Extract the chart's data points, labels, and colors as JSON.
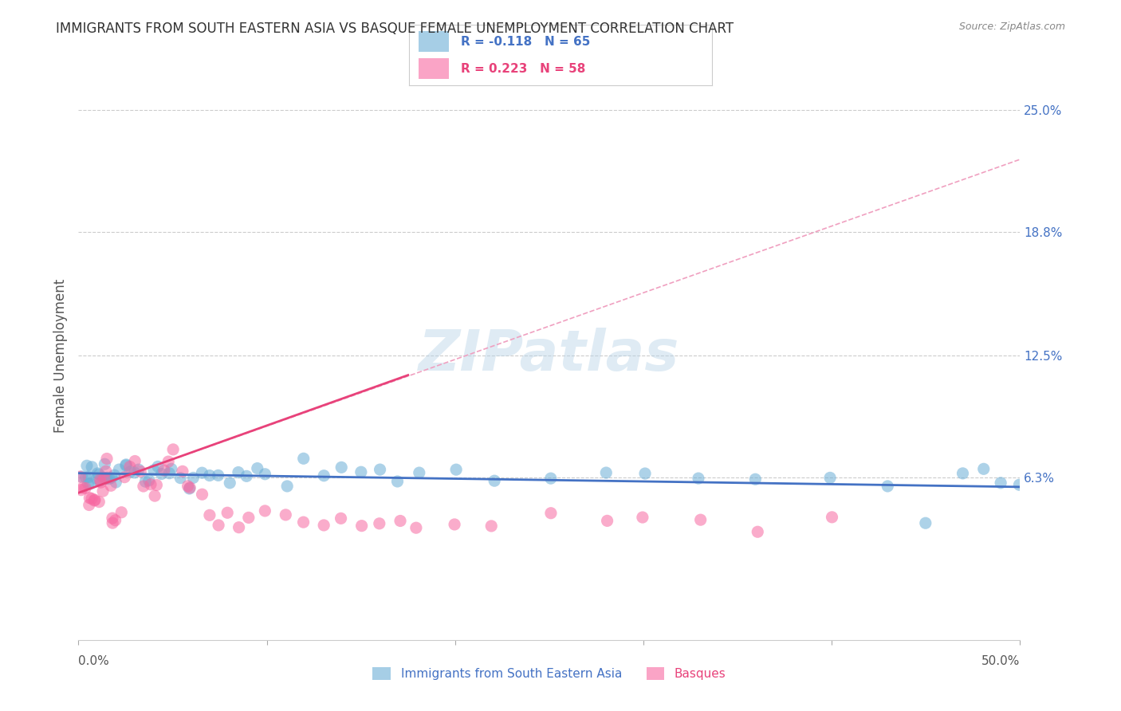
{
  "title": "IMMIGRANTS FROM SOUTH EASTERN ASIA VS BASQUE FEMALE UNEMPLOYMENT CORRELATION CHART",
  "source": "Source: ZipAtlas.com",
  "ylabel": "Female Unemployment",
  "ytick_labels": [
    "25.0%",
    "18.8%",
    "12.5%",
    "6.3%"
  ],
  "ytick_values": [
    0.25,
    0.188,
    0.125,
    0.063
  ],
  "xlim": [
    0.0,
    0.5
  ],
  "ylim": [
    -0.02,
    0.27
  ],
  "legend_bottom": [
    "Immigrants from South Eastern Asia",
    "Basques"
  ],
  "background_color": "#ffffff",
  "grid_color": "#cccccc",
  "watermark": "ZIPatlas",
  "blue_scatter_x": [
    0.002,
    0.003,
    0.004,
    0.005,
    0.006,
    0.007,
    0.008,
    0.009,
    0.01,
    0.011,
    0.012,
    0.013,
    0.014,
    0.015,
    0.016,
    0.017,
    0.018,
    0.019,
    0.02,
    0.022,
    0.025,
    0.026,
    0.028,
    0.03,
    0.032,
    0.035,
    0.038,
    0.04,
    0.042,
    0.045,
    0.048,
    0.05,
    0.055,
    0.058,
    0.06,
    0.065,
    0.07,
    0.075,
    0.08,
    0.085,
    0.09,
    0.095,
    0.1,
    0.11,
    0.12,
    0.13,
    0.14,
    0.15,
    0.16,
    0.17,
    0.18,
    0.2,
    0.22,
    0.25,
    0.28,
    0.3,
    0.33,
    0.36,
    0.4,
    0.43,
    0.45,
    0.47,
    0.48,
    0.49,
    0.5
  ],
  "blue_scatter_y": [
    0.063,
    0.065,
    0.067,
    0.062,
    0.06,
    0.058,
    0.07,
    0.065,
    0.063,
    0.06,
    0.063,
    0.068,
    0.065,
    0.063,
    0.065,
    0.06,
    0.062,
    0.065,
    0.063,
    0.068,
    0.07,
    0.068,
    0.065,
    0.063,
    0.067,
    0.063,
    0.06,
    0.065,
    0.068,
    0.063,
    0.065,
    0.067,
    0.063,
    0.06,
    0.065,
    0.068,
    0.063,
    0.065,
    0.06,
    0.063,
    0.065,
    0.068,
    0.063,
    0.06,
    0.075,
    0.065,
    0.07,
    0.063,
    0.065,
    0.06,
    0.063,
    0.065,
    0.063,
    0.06,
    0.065,
    0.063,
    0.06,
    0.063,
    0.065,
    0.06,
    0.04,
    0.063,
    0.065,
    0.063,
    0.059
  ],
  "pink_scatter_x": [
    0.001,
    0.002,
    0.003,
    0.004,
    0.005,
    0.006,
    0.007,
    0.008,
    0.009,
    0.01,
    0.011,
    0.012,
    0.013,
    0.014,
    0.015,
    0.016,
    0.017,
    0.018,
    0.019,
    0.02,
    0.022,
    0.025,
    0.028,
    0.03,
    0.032,
    0.035,
    0.038,
    0.04,
    0.042,
    0.045,
    0.048,
    0.05,
    0.055,
    0.058,
    0.06,
    0.065,
    0.07,
    0.075,
    0.08,
    0.085,
    0.09,
    0.1,
    0.11,
    0.12,
    0.13,
    0.14,
    0.15,
    0.16,
    0.17,
    0.18,
    0.2,
    0.22,
    0.25,
    0.28,
    0.3,
    0.33,
    0.36,
    0.4
  ],
  "pink_scatter_y": [
    0.063,
    0.058,
    0.06,
    0.055,
    0.05,
    0.048,
    0.053,
    0.052,
    0.05,
    0.048,
    0.058,
    0.06,
    0.055,
    0.065,
    0.068,
    0.07,
    0.058,
    0.045,
    0.042,
    0.04,
    0.048,
    0.065,
    0.068,
    0.07,
    0.065,
    0.06,
    0.058,
    0.055,
    0.06,
    0.065,
    0.07,
    0.075,
    0.065,
    0.058,
    0.06,
    0.055,
    0.045,
    0.04,
    0.042,
    0.038,
    0.04,
    0.045,
    0.042,
    0.04,
    0.038,
    0.042,
    0.04,
    0.038,
    0.042,
    0.04,
    0.038,
    0.04,
    0.042,
    0.038,
    0.04,
    0.042,
    0.038,
    0.04
  ],
  "blue_line_y_start": 0.065,
  "blue_line_y_end": 0.058,
  "pink_line_x_start": 0.0,
  "pink_line_x_end": 0.175,
  "pink_line_y_start": 0.055,
  "pink_line_y_end": 0.115,
  "pink_dashed_line_x_start": 0.0,
  "pink_dashed_line_x_end": 0.5,
  "pink_dashed_line_y_start": 0.055,
  "pink_dashed_line_y_end": 0.225
}
